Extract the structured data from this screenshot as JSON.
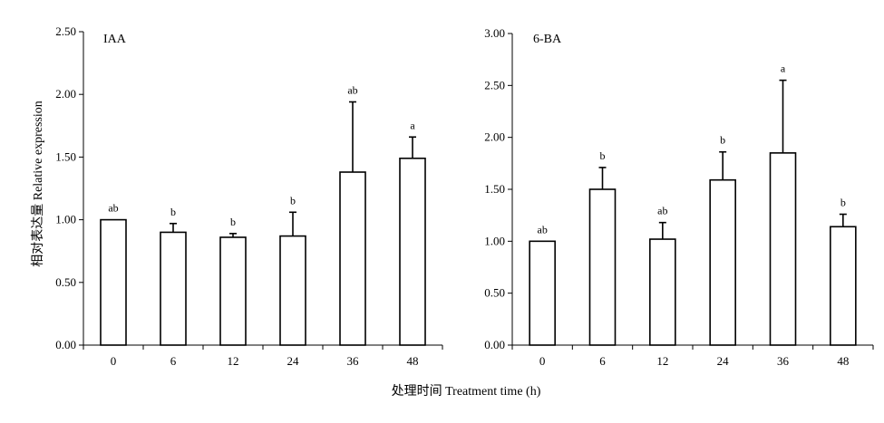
{
  "chart_data": [
    {
      "type": "bar",
      "title": "IAA",
      "categories": [
        "0",
        "6",
        "12",
        "24",
        "36",
        "48"
      ],
      "values": [
        1.0,
        0.9,
        0.86,
        0.87,
        1.38,
        1.49
      ],
      "errors": [
        0.0,
        0.07,
        0.03,
        0.19,
        0.56,
        0.17
      ],
      "significance": [
        "ab",
        "b",
        "b",
        "b",
        "ab",
        "a"
      ],
      "ylim": [
        0,
        2.5
      ],
      "yticks": [
        "0.00",
        "0.50",
        "1.00",
        "1.50",
        "2.00",
        "2.50"
      ],
      "ylabel": "相对表达量 Relative expression",
      "xlabel": "处理时间 Treatment time (h)"
    },
    {
      "type": "bar",
      "title": "6-BA",
      "categories": [
        "0",
        "6",
        "12",
        "24",
        "36",
        "48"
      ],
      "values": [
        1.0,
        1.5,
        1.02,
        1.59,
        1.85,
        1.14
      ],
      "errors": [
        0.0,
        0.21,
        0.16,
        0.27,
        0.7,
        0.12
      ],
      "significance": [
        "ab",
        "b",
        "ab",
        "b",
        "a",
        "b"
      ],
      "ylim": [
        0,
        3.0
      ],
      "yticks": [
        "0.00",
        "0.50",
        "1.00",
        "1.50",
        "2.00",
        "2.50",
        "3.00"
      ]
    }
  ]
}
